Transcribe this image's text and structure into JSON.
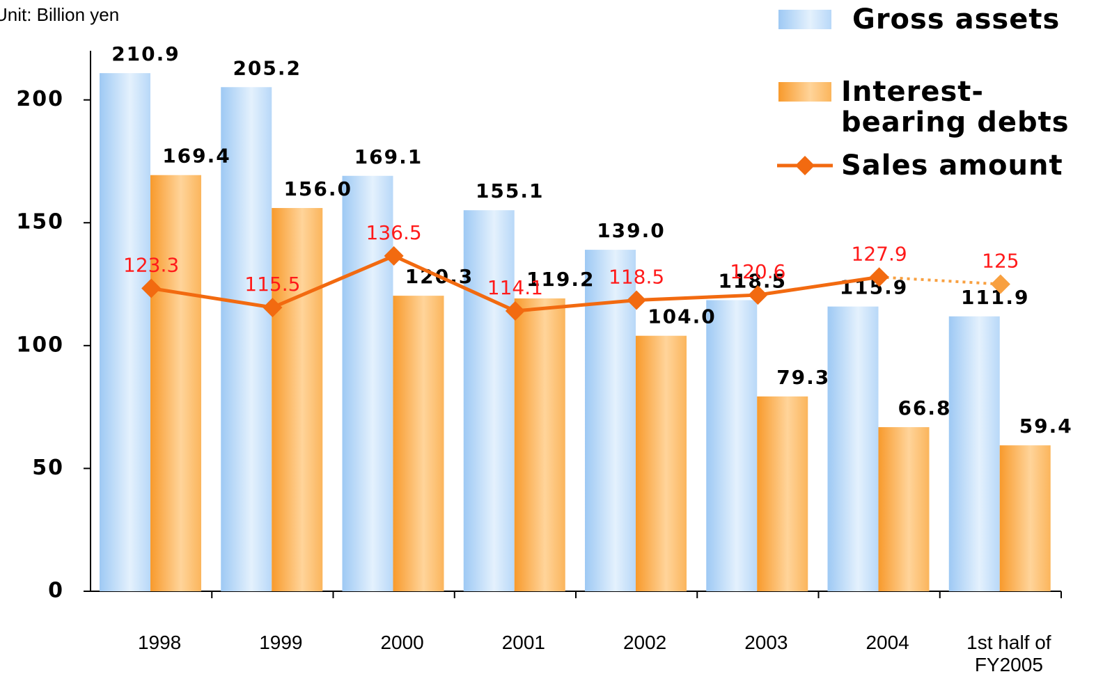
{
  "chart_data": {
    "type": "bar",
    "subtitle": "Unit: Billion yen",
    "categories": [
      "1998",
      "1999",
      "2000",
      "2001",
      "2002",
      "2003",
      "2004",
      "1st half of FY2005"
    ],
    "series": [
      {
        "name": "Gross assets",
        "color": "#9ec9f4",
        "type": "bar",
        "values": [
          210.9,
          205.2,
          169.1,
          155.1,
          139.0,
          118.5,
          115.9,
          111.9
        ],
        "value_labels": [
          "210.9",
          "205.2",
          "169.1",
          "155.1",
          "139.0",
          "118.5",
          "115.9",
          "111.9"
        ]
      },
      {
        "name": "Interest-bearing debts",
        "color": "#f89a2c",
        "type": "bar",
        "values": [
          169.4,
          156.0,
          120.3,
          119.2,
          104.0,
          79.3,
          66.8,
          59.4
        ],
        "value_labels": [
          "169.4",
          "156.0",
          "120.3",
          "119.2",
          "104.0",
          "79.3",
          "66.8",
          "59.4"
        ]
      },
      {
        "name": "Sales amount",
        "color": "#f26a10",
        "type": "line",
        "last_segment_style": "dotted",
        "values": [
          123.3,
          115.5,
          136.5,
          114.1,
          118.5,
          120.6,
          127.9,
          125
        ]
      }
    ],
    "ylim": [
      0,
      220
    ],
    "yticks": [
      0,
      50,
      100,
      150,
      200
    ],
    "legend": "top-right"
  }
}
